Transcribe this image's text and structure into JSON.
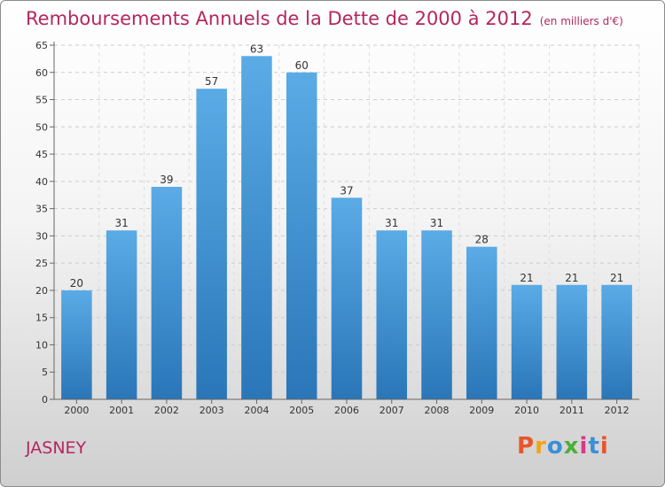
{
  "header": {
    "title": "Remboursements Annuels de la Dette de 2000 à 2012",
    "unit": "(en milliers d'€)"
  },
  "footer": {
    "commune": "JASNEY",
    "logo": "Proxiti",
    "logo_colors": [
      "#e8552a",
      "#f2a516",
      "#3a8fd6",
      "#4caf3a",
      "#d63a8a",
      "#3a8fd6",
      "#e8552a"
    ]
  },
  "chart_data": {
    "type": "bar",
    "categories": [
      "2000",
      "2001",
      "2002",
      "2003",
      "2004",
      "2005",
      "2006",
      "2007",
      "2008",
      "2009",
      "2010",
      "2011",
      "2012"
    ],
    "values": [
      20,
      31,
      39,
      57,
      63,
      60,
      37,
      31,
      31,
      28,
      21,
      21,
      21
    ],
    "title": "Remboursements Annuels de la Dette de 2000 à 2012",
    "xlabel": "",
    "ylabel": "",
    "ylim": [
      0,
      65
    ],
    "yticks": [
      0,
      5,
      10,
      15,
      20,
      25,
      30,
      35,
      40,
      45,
      50,
      55,
      60,
      65
    ],
    "grid": true,
    "bar_color_top": "#5aabe6",
    "bar_color_bottom": "#2a76b8",
    "data_labels": true
  }
}
